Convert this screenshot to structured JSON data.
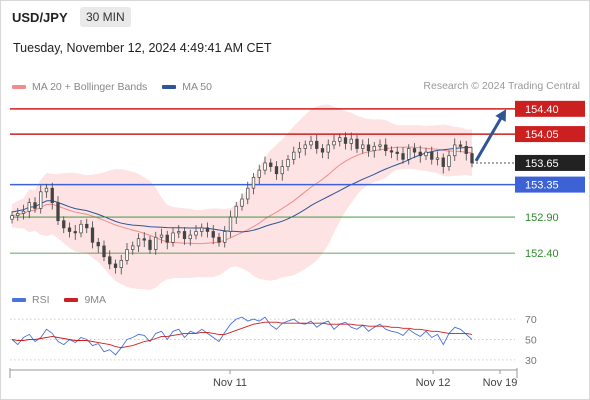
{
  "header": {
    "symbol": "USD/JPY",
    "timeframe": "30 MIN",
    "timestamp": "Tuesday, November 12, 2024 4:49:41 AM CET"
  },
  "legend": {
    "items": [
      {
        "label": "MA 20 + Bollinger Bands",
        "color": "#f28c8c"
      },
      {
        "label": "MA 50",
        "color": "#2f5597"
      }
    ],
    "credit": "Research © 2024 Trading Central"
  },
  "indicator_legend": {
    "items": [
      {
        "label": "RSI",
        "color": "#4a72d9"
      },
      {
        "label": "9MA",
        "color": "#cc1f1f"
      }
    ]
  },
  "colors": {
    "resistance": "#cc1f1f",
    "support": "#3d62d6",
    "target": "#2d8a2d",
    "arrow": "#2f5597",
    "band": "#fde3e3",
    "candle": "#444444"
  },
  "chart_data": [
    {
      "type": "candlestick",
      "title": "USD/JPY",
      "timeframe": "30 MIN",
      "ylim": [
        152.0,
        154.55
      ],
      "x_ticks": [
        "Nov 11",
        "Nov 12",
        "Nov 19"
      ],
      "current_price": "153.65",
      "levels": [
        {
          "label": "154.40",
          "value": 154.4,
          "kind": "resistance"
        },
        {
          "label": "154.05",
          "value": 154.05,
          "kind": "resistance"
        },
        {
          "label": "153.65",
          "value": 153.65,
          "kind": "current"
        },
        {
          "label": "153.35",
          "value": 153.35,
          "kind": "support"
        },
        {
          "label": "152.90",
          "value": 152.9,
          "kind": "target"
        },
        {
          "label": "152.40",
          "value": 152.4,
          "kind": "target"
        }
      ],
      "close": [
        152.92,
        152.95,
        152.98,
        153.1,
        153.02,
        153.25,
        153.3,
        153.1,
        152.85,
        152.75,
        152.7,
        152.68,
        152.8,
        152.75,
        152.55,
        152.5,
        152.35,
        152.25,
        152.2,
        152.3,
        152.45,
        152.5,
        152.6,
        152.58,
        152.45,
        152.62,
        152.65,
        152.55,
        152.68,
        152.7,
        152.6,
        152.65,
        152.7,
        152.75,
        152.7,
        152.62,
        152.55,
        152.7,
        152.9,
        153.05,
        153.15,
        153.3,
        153.45,
        153.55,
        153.65,
        153.6,
        153.5,
        153.6,
        153.7,
        153.8,
        153.85,
        153.9,
        153.95,
        153.85,
        153.8,
        153.9,
        153.95,
        154.0,
        153.92,
        153.98,
        153.85,
        153.9,
        153.82,
        153.88,
        153.9,
        153.82,
        153.8,
        153.78,
        153.7,
        153.85,
        153.8,
        153.75,
        153.8,
        153.7,
        153.72,
        153.6,
        153.75,
        153.9,
        153.88,
        153.78,
        153.65
      ]
    },
    {
      "type": "line",
      "title": "RSI",
      "yticks": [
        "70",
        "50",
        "30"
      ],
      "ylim": [
        25,
        75
      ],
      "series": [
        {
          "name": "RSI",
          "values": [
            50,
            45,
            52,
            55,
            48,
            52,
            60,
            56,
            48,
            45,
            50,
            47,
            52,
            50,
            44,
            46,
            38,
            40,
            35,
            42,
            50,
            52,
            55,
            54,
            48,
            56,
            58,
            50,
            58,
            60,
            52,
            58,
            56,
            60,
            56,
            52,
            48,
            57,
            65,
            70,
            72,
            68,
            70,
            68,
            72,
            64,
            60,
            66,
            68,
            70,
            66,
            65,
            68,
            62,
            66,
            68,
            60,
            65,
            67,
            62,
            60,
            64,
            58,
            62,
            65,
            60,
            58,
            57,
            54,
            60,
            56,
            53,
            58,
            52,
            55,
            45,
            56,
            62,
            60,
            55,
            50
          ]
        },
        {
          "name": "9MA",
          "values": [
            50,
            49,
            49,
            50,
            50,
            51,
            52,
            53,
            52,
            51,
            50,
            49,
            49,
            49,
            48,
            47,
            46,
            45,
            43,
            42,
            43,
            44,
            46,
            48,
            49,
            51,
            53,
            53,
            54,
            55,
            56,
            56,
            56,
            57,
            57,
            56,
            55,
            55,
            57,
            59,
            61,
            63,
            65,
            66,
            67,
            67,
            67,
            66,
            66,
            66,
            66,
            66,
            66,
            66,
            66,
            65,
            65,
            65,
            65,
            65,
            64,
            64,
            63,
            63,
            63,
            63,
            62,
            62,
            61,
            61,
            60,
            60,
            59,
            58,
            58,
            57,
            56,
            56,
            56,
            56,
            55
          ]
        }
      ]
    }
  ]
}
